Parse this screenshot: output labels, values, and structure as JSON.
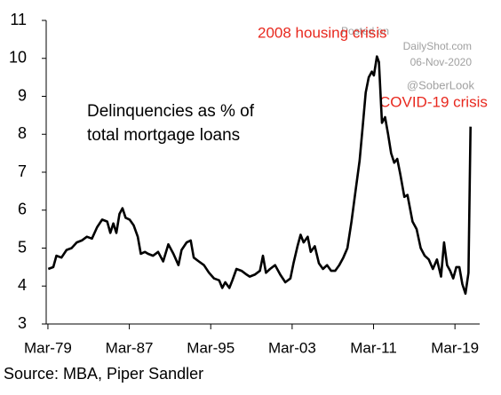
{
  "chart_data": {
    "type": "line",
    "annotations": [
      "Delinquencies as % of",
      "total mortgage loans",
      "2008 housing crisis",
      "COVID-19 crisis"
    ],
    "watermark": [
      "Posted on",
      "DailyShot.com",
      "06-Nov-2020",
      "@SoberLook"
    ],
    "source": "Source: MBA, Piper Sandler",
    "color": "#000000",
    "annotation_color": "#e8281e",
    "x": [
      1979.2,
      1979.7,
      1980,
      1980.5,
      1981,
      1981.5,
      1982,
      1982.5,
      1983,
      1983.5,
      1984,
      1984.5,
      1985,
      1985.3,
      1985.6,
      1985.9,
      1986.2,
      1986.5,
      1986.8,
      1987.2,
      1987.6,
      1988,
      1988.3,
      1988.7,
      1989,
      1989.5,
      1990,
      1990.5,
      1991,
      1991.5,
      1992,
      1992.3,
      1992.8,
      1993.2,
      1993.5,
      1994,
      1994.5,
      1995,
      1995.5,
      1996,
      1996.3,
      1996.6,
      1997,
      1997.3,
      1997.7,
      1998.2,
      1998.7,
      1999,
      1999.5,
      2000,
      2000.3,
      2000.6,
      2001,
      2001.5,
      2002,
      2002.5,
      2003,
      2003.3,
      2003.7,
      2004,
      2004.3,
      2004.7,
      2005,
      2005.4,
      2005.8,
      2006.2,
      2006.6,
      2007,
      2007.4,
      2007.8,
      2008.2,
      2008.6,
      2009,
      2009.4,
      2009.8,
      2010.1,
      2010.4,
      2010.7,
      2011,
      2011.2,
      2011.5,
      2011.7,
      2012,
      2012.3,
      2012.6,
      2012.9,
      2013.2,
      2013.5,
      2013.8,
      2014.2,
      2014.5,
      2015,
      2015.4,
      2015.8,
      2016.2,
      2016.6,
      2017,
      2017.4,
      2017.8,
      2018.1,
      2018.4,
      2018.7,
      2019,
      2019.3,
      2019.6,
      2019.9,
      2020.2,
      2020.5,
      2020.7
    ],
    "values": [
      4.45,
      4.5,
      4.8,
      4.75,
      4.95,
      5.0,
      5.15,
      5.2,
      5.3,
      5.25,
      5.55,
      5.75,
      5.7,
      5.4,
      5.65,
      5.4,
      5.9,
      6.05,
      5.8,
      5.75,
      5.6,
      5.3,
      4.85,
      4.9,
      4.85,
      4.8,
      4.9,
      4.65,
      5.1,
      4.85,
      4.55,
      4.95,
      5.15,
      5.2,
      4.75,
      4.65,
      4.55,
      4.35,
      4.2,
      4.15,
      3.95,
      4.1,
      3.95,
      4.15,
      4.45,
      4.4,
      4.3,
      4.25,
      4.3,
      4.4,
      4.8,
      4.35,
      4.45,
      4.55,
      4.3,
      4.1,
      4.2,
      4.6,
      5.05,
      5.35,
      5.15,
      5.3,
      4.9,
      5.05,
      4.6,
      4.45,
      4.55,
      4.4,
      4.4,
      4.55,
      4.75,
      5.0,
      5.7,
      6.5,
      7.3,
      8.2,
      9.1,
      9.5,
      9.65,
      9.55,
      10.05,
      9.9,
      8.3,
      8.45,
      8.0,
      7.5,
      7.25,
      7.35,
      6.95,
      6.35,
      6.4,
      5.7,
      5.5,
      5.0,
      4.8,
      4.7,
      4.45,
      4.7,
      4.25,
      5.15,
      4.55,
      4.4,
      4.2,
      4.5,
      4.5,
      4.05,
      3.8,
      4.35,
      8.2
    ],
    "xlim": [
      1979.0,
      2021.6
    ],
    "xticks": [
      {
        "value": 1979.17,
        "label": "Mar-79"
      },
      {
        "value": 1987.17,
        "label": "Mar-87"
      },
      {
        "value": 1995.17,
        "label": "Mar-95"
      },
      {
        "value": 2003.17,
        "label": "Mar-03"
      },
      {
        "value": 2011.17,
        "label": "Mar-11"
      },
      {
        "value": 2019.17,
        "label": "Mar-19"
      }
    ],
    "ylim": [
      3,
      11
    ],
    "yticks": [
      3,
      4,
      5,
      6,
      7,
      8,
      9,
      10,
      11
    ]
  }
}
